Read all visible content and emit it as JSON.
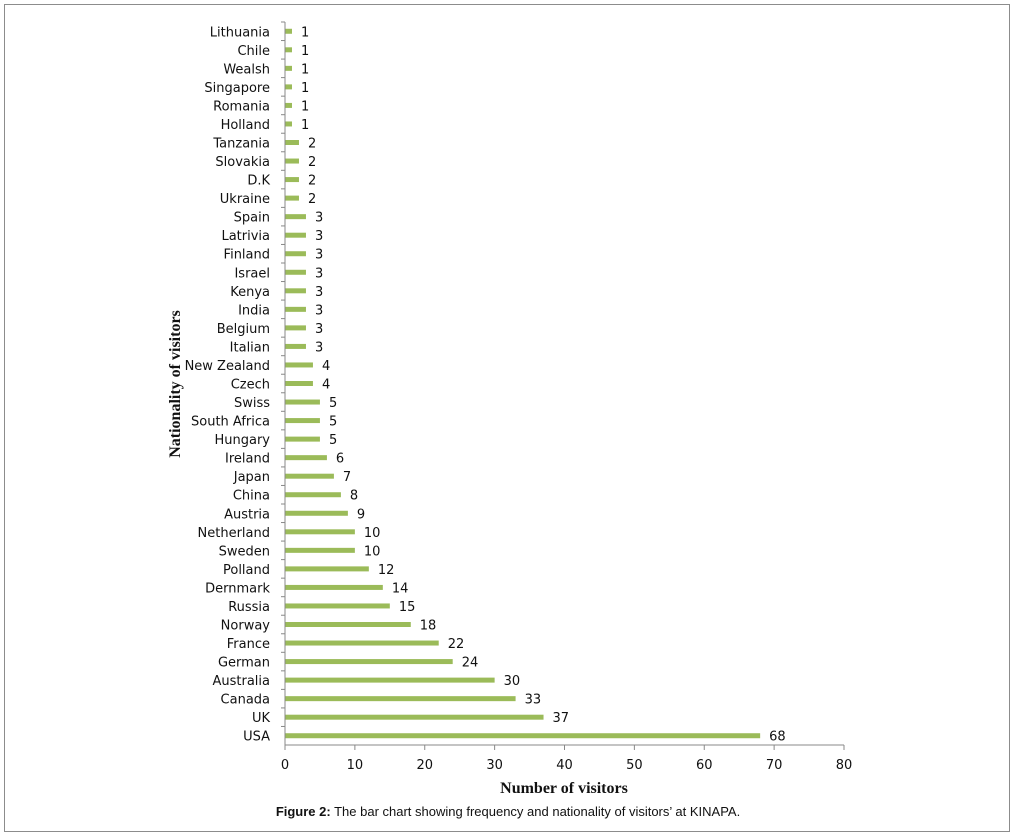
{
  "chart_data": {
    "type": "bar",
    "orientation": "horizontal",
    "title": "",
    "xlabel": "Number of visitors",
    "ylabel": "Nationality of visitors",
    "xlim": [
      0,
      80
    ],
    "x_ticks": [
      0,
      10,
      20,
      30,
      40,
      50,
      60,
      70,
      80
    ],
    "grid": false,
    "legend": "none",
    "bar_color": "#9bbb59",
    "categories": [
      "Lithuania",
      "Chile",
      "Wealsh",
      "Singapore",
      "Romania",
      "Holland",
      "Tanzania",
      "Slovakia",
      "D.K",
      "Ukraine",
      "Spain",
      "Latrivia",
      "Finland",
      "Israel",
      "Kenya",
      "India",
      "Belgium",
      "Italian",
      "New Zealand",
      "Czech",
      "Swiss",
      "South Africa",
      "Hungary",
      "Ireland",
      "Japan",
      "China",
      "Austria",
      "Netherland",
      "Sweden",
      "Polland",
      "Dernmark",
      "Russia",
      "Norway",
      "France",
      "German",
      "Australia",
      "Canada",
      "UK",
      "USA"
    ],
    "values": [
      1,
      1,
      1,
      1,
      1,
      1,
      2,
      2,
      2,
      2,
      3,
      3,
      3,
      3,
      3,
      3,
      3,
      3,
      4,
      4,
      5,
      5,
      5,
      6,
      7,
      8,
      9,
      10,
      10,
      12,
      14,
      15,
      18,
      22,
      24,
      30,
      33,
      37,
      68
    ]
  },
  "caption": {
    "label": "Figure 2:",
    "text": " The bar chart showing frequency and nationality of visitors’ at KINAPA."
  }
}
